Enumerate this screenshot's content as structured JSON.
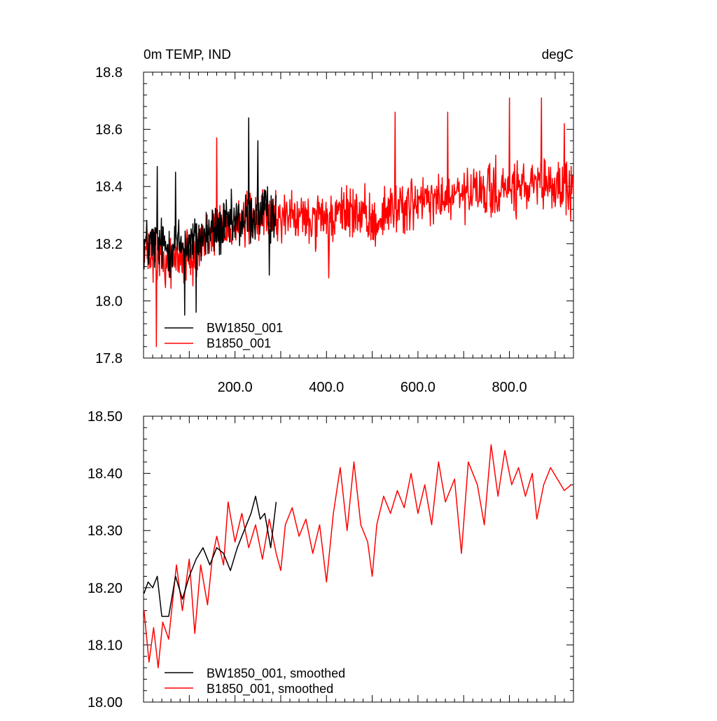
{
  "chart_data": [
    {
      "type": "line",
      "title_left": "0m TEMP, IND",
      "title_right": "degC",
      "xlim": [
        0,
        940
      ],
      "ylim": [
        17.8,
        18.8
      ],
      "x_ticks": [
        200,
        400,
        600,
        800
      ],
      "x_tick_labels": [
        "200.0",
        "400.0",
        "600.0",
        "800.0"
      ],
      "y_ticks": [
        17.8,
        18.0,
        18.2,
        18.4,
        18.6,
        18.8
      ],
      "y_tick_labels": [
        "17.8",
        "18.0",
        "18.2",
        "18.4",
        "18.6",
        "18.8"
      ],
      "series": [
        {
          "name": "BW1850_001",
          "color": "#000000",
          "x_range": [
            1,
            290
          ],
          "anchors": [
            [
              0,
              18.2
            ],
            [
              50,
              18.19
            ],
            [
              100,
              18.2
            ],
            [
              150,
              18.24
            ],
            [
              200,
              18.27
            ],
            [
              250,
              18.3
            ],
            [
              290,
              18.31
            ]
          ],
          "noise": 0.075,
          "peaks": [
            [
              30,
              18.47
            ],
            [
              70,
              18.45
            ],
            [
              90,
              17.95
            ],
            [
              115,
              17.96
            ],
            [
              230,
              18.64
            ],
            [
              250,
              18.56
            ],
            [
              275,
              18.09
            ]
          ]
        },
        {
          "name": "B1850_001",
          "color": "#ff0000",
          "x_range": [
            1,
            940
          ],
          "anchors": [
            [
              0,
              18.16
            ],
            [
              50,
              18.14
            ],
            [
              100,
              18.16
            ],
            [
              150,
              18.24
            ],
            [
              200,
              18.27
            ],
            [
              300,
              18.3
            ],
            [
              400,
              18.27
            ],
            [
              450,
              18.32
            ],
            [
              500,
              18.27
            ],
            [
              550,
              18.33
            ],
            [
              600,
              18.34
            ],
            [
              700,
              18.37
            ],
            [
              800,
              18.39
            ],
            [
              900,
              18.4
            ],
            [
              940,
              18.39
            ]
          ],
          "noise": 0.07,
          "peaks": [
            [
              28,
              17.84
            ],
            [
              160,
              18.57
            ],
            [
              405,
              18.08
            ],
            [
              800,
              18.71
            ],
            [
              870,
              18.71
            ],
            [
              550,
              18.66
            ],
            [
              665,
              18.66
            ],
            [
              920,
              18.62
            ]
          ]
        }
      ],
      "legend": [
        "BW1850_001",
        "B1850_001"
      ],
      "legend_position": "bottom-left"
    },
    {
      "type": "line",
      "xlim": [
        0,
        940
      ],
      "ylim": [
        18.0,
        18.5
      ],
      "y_ticks": [
        18.0,
        18.1,
        18.2,
        18.3,
        18.4,
        18.5
      ],
      "y_tick_labels": [
        "18.00",
        "18.10",
        "18.20",
        "18.30",
        "18.40",
        "18.50"
      ],
      "series": [
        {
          "name": "BW1850_001, smoothed",
          "color": "#000000",
          "points": [
            [
              1,
              18.19
            ],
            [
              10,
              18.21
            ],
            [
              20,
              18.2
            ],
            [
              30,
              18.22
            ],
            [
              40,
              18.15
            ],
            [
              55,
              18.15
            ],
            [
              70,
              18.22
            ],
            [
              85,
              18.18
            ],
            [
              100,
              18.22
            ],
            [
              115,
              18.25
            ],
            [
              130,
              18.27
            ],
            [
              145,
              18.24
            ],
            [
              160,
              18.27
            ],
            [
              175,
              18.26
            ],
            [
              190,
              18.23
            ],
            [
              205,
              18.27
            ],
            [
              220,
              18.3
            ],
            [
              235,
              18.33
            ],
            [
              245,
              18.36
            ],
            [
              255,
              18.32
            ],
            [
              265,
              18.33
            ],
            [
              278,
              18.27
            ],
            [
              290,
              18.35
            ]
          ]
        },
        {
          "name": "B1850_001, smoothed",
          "color": "#ff0000",
          "points": [
            [
              1,
              18.16
            ],
            [
              12,
              18.07
            ],
            [
              22,
              18.13
            ],
            [
              32,
              18.06
            ],
            [
              42,
              18.14
            ],
            [
              55,
              18.11
            ],
            [
              72,
              18.24
            ],
            [
              85,
              18.16
            ],
            [
              100,
              18.25
            ],
            [
              112,
              18.12
            ],
            [
              125,
              18.24
            ],
            [
              140,
              18.17
            ],
            [
              150,
              18.25
            ],
            [
              160,
              18.29
            ],
            [
              175,
              18.24
            ],
            [
              185,
              18.35
            ],
            [
              200,
              18.28
            ],
            [
              215,
              18.33
            ],
            [
              230,
              18.27
            ],
            [
              245,
              18.31
            ],
            [
              260,
              18.25
            ],
            [
              275,
              18.32
            ],
            [
              290,
              18.26
            ],
            [
              300,
              18.23
            ],
            [
              310,
              18.31
            ],
            [
              325,
              18.34
            ],
            [
              340,
              18.29
            ],
            [
              355,
              18.32
            ],
            [
              370,
              18.26
            ],
            [
              385,
              18.31
            ],
            [
              400,
              18.21
            ],
            [
              415,
              18.33
            ],
            [
              430,
              18.41
            ],
            [
              445,
              18.3
            ],
            [
              460,
              18.42
            ],
            [
              475,
              18.31
            ],
            [
              490,
              18.28
            ],
            [
              500,
              18.22
            ],
            [
              510,
              18.31
            ],
            [
              525,
              18.36
            ],
            [
              540,
              18.33
            ],
            [
              555,
              18.37
            ],
            [
              570,
              18.34
            ],
            [
              585,
              18.4
            ],
            [
              600,
              18.33
            ],
            [
              615,
              18.38
            ],
            [
              630,
              18.31
            ],
            [
              645,
              18.42
            ],
            [
              660,
              18.35
            ],
            [
              680,
              18.39
            ],
            [
              695,
              18.26
            ],
            [
              710,
              18.42
            ],
            [
              730,
              18.38
            ],
            [
              745,
              18.31
            ],
            [
              760,
              18.45
            ],
            [
              775,
              18.36
            ],
            [
              790,
              18.44
            ],
            [
              805,
              18.38
            ],
            [
              820,
              18.41
            ],
            [
              835,
              18.36
            ],
            [
              850,
              18.4
            ],
            [
              860,
              18.32
            ],
            [
              875,
              18.38
            ],
            [
              890,
              18.41
            ],
            [
              905,
              18.39
            ],
            [
              920,
              18.37
            ],
            [
              935,
              18.38
            ]
          ]
        }
      ],
      "legend": [
        "BW1850_001, smoothed",
        "B1850_001, smoothed"
      ],
      "legend_position": "bottom-left"
    }
  ]
}
